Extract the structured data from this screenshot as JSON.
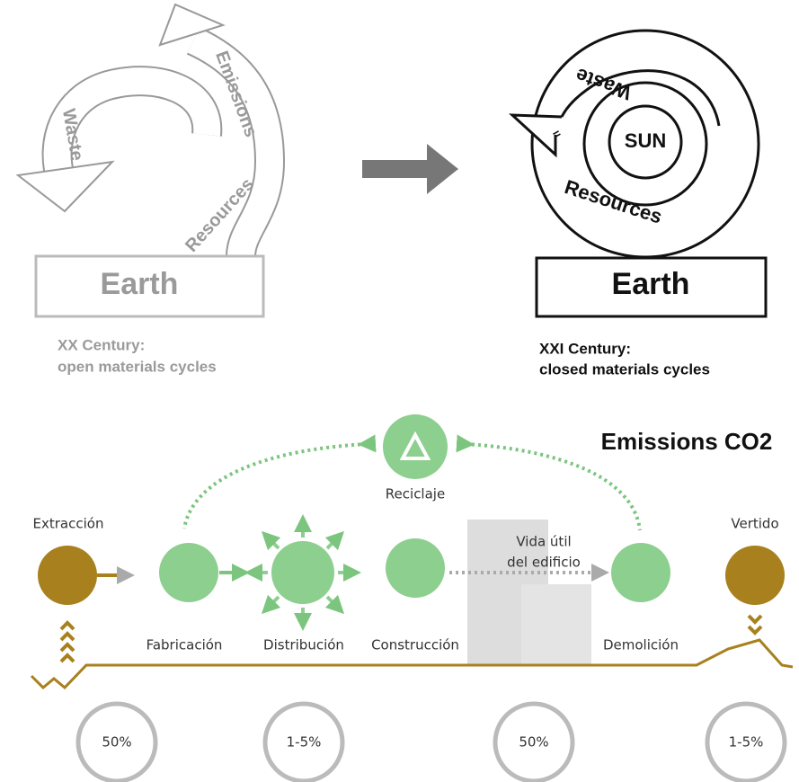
{
  "left_panel": {
    "waste": "Waste",
    "emissions": "Emissions",
    "resources": "Resources",
    "earth": "Earth",
    "caption": [
      "XX Century:",
      "open materials cycles"
    ]
  },
  "right_panel": {
    "waste": "Waste",
    "sun": "SUN",
    "resources": "Resources",
    "earth": "Earth",
    "caption": [
      "XXI Century:",
      "closed materials cycles"
    ]
  },
  "lifecycle": {
    "title": "Emissions CO2",
    "recycling": "Reciclaje",
    "stages": [
      "Extracción",
      "Fabricación",
      "Distribución",
      "Construcción",
      "Demolición",
      "Vertido"
    ],
    "building": [
      "Vida útil",
      "del edificio"
    ],
    "percentages": [
      "50%",
      "1-5%",
      "50%",
      "1-5%"
    ]
  }
}
